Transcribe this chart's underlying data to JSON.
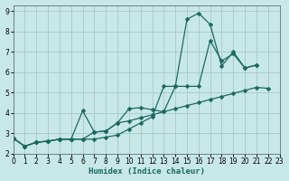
{
  "xlabel": "Humidex (Indice chaleur)",
  "bg_color": "#c8e8e8",
  "grid_color": "#a8c8c8",
  "line_color": "#1a6860",
  "xlim": [
    0,
    23
  ],
  "ylim": [
    2,
    9.3
  ],
  "xtick_vals": [
    0,
    1,
    2,
    3,
    4,
    5,
    6,
    7,
    8,
    9,
    10,
    11,
    12,
    13,
    14,
    15,
    16,
    17,
    18,
    19,
    20,
    21,
    22,
    23
  ],
  "ytick_vals": [
    2,
    3,
    4,
    5,
    6,
    7,
    8,
    9
  ],
  "series1_x": [
    0,
    1,
    2,
    3,
    4,
    5,
    6,
    7,
    8,
    9,
    10,
    11,
    12,
    13,
    14,
    15,
    16,
    17,
    18,
    19,
    20,
    21
  ],
  "series1_y": [
    2.75,
    2.35,
    2.55,
    2.6,
    2.7,
    2.7,
    4.1,
    3.05,
    3.1,
    3.5,
    4.2,
    4.25,
    4.15,
    4.05,
    5.3,
    8.6,
    8.9,
    8.35,
    6.3,
    7.0,
    6.2,
    6.35
  ],
  "series2_x": [
    0,
    1,
    2,
    3,
    4,
    5,
    6,
    7,
    8,
    9,
    10,
    11,
    12,
    13,
    14,
    15,
    16,
    17,
    18,
    19,
    20,
    21
  ],
  "series2_y": [
    2.75,
    2.35,
    2.55,
    2.6,
    2.7,
    2.7,
    2.7,
    2.7,
    2.8,
    2.9,
    3.2,
    3.5,
    3.8,
    5.3,
    5.3,
    5.3,
    5.3,
    7.55,
    6.55,
    6.9,
    6.2,
    6.35
  ],
  "series3_x": [
    0,
    1,
    2,
    3,
    4,
    5,
    6,
    7,
    8,
    9,
    10,
    11,
    12,
    13,
    14,
    15,
    16,
    17,
    18,
    19,
    20,
    21,
    22
  ],
  "series3_y": [
    2.75,
    2.35,
    2.55,
    2.6,
    2.7,
    2.7,
    2.7,
    3.05,
    3.1,
    3.5,
    3.6,
    3.75,
    3.9,
    4.05,
    4.2,
    4.35,
    4.5,
    4.65,
    4.8,
    4.95,
    5.1,
    5.25,
    5.2
  ]
}
